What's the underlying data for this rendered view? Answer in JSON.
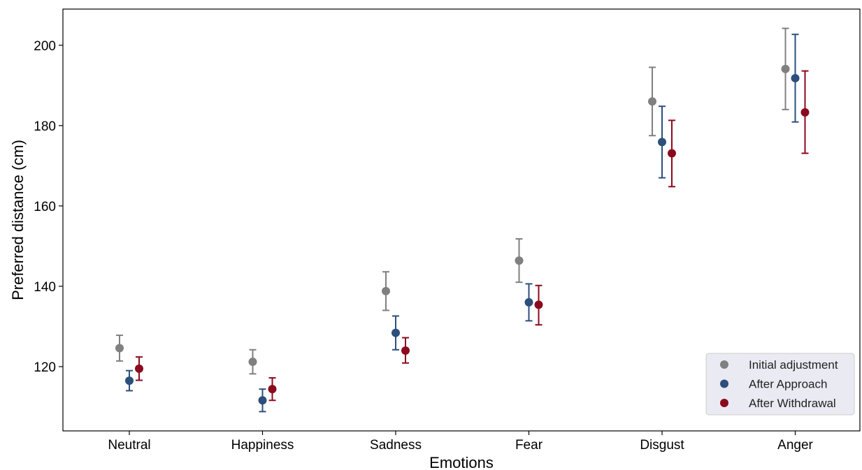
{
  "chart_data": {
    "type": "scatter",
    "xlabel": "Emotions",
    "ylabel": "Preferred distance (cm)",
    "categories": [
      "Neutral",
      "Happiness",
      "Sadness",
      "Fear",
      "Disgust",
      "Anger"
    ],
    "ylim": [
      104,
      209
    ],
    "yticks": [
      120,
      140,
      160,
      180,
      200
    ],
    "grid": false,
    "legend_position": "bottom-right",
    "series": [
      {
        "name": "Initial adjustment",
        "color": "#808080",
        "values": [
          124.6,
          121.2,
          138.8,
          146.4,
          186.0,
          194.1
        ],
        "err_low": [
          121.4,
          118.2,
          134.0,
          141.0,
          177.5,
          184.0
        ],
        "err_high": [
          127.8,
          124.2,
          143.6,
          151.8,
          194.5,
          204.2
        ]
      },
      {
        "name": "After Approach",
        "color": "#2c4f7c",
        "values": [
          116.5,
          111.6,
          128.4,
          136.0,
          175.9,
          191.8
        ],
        "err_low": [
          114.0,
          108.8,
          124.2,
          131.4,
          167.0,
          180.9
        ],
        "err_high": [
          119.0,
          114.4,
          132.6,
          140.6,
          184.8,
          202.7
        ]
      },
      {
        "name": "After Withdrawal",
        "color": "#8b0a1e",
        "values": [
          119.5,
          114.4,
          124.0,
          135.4,
          173.1,
          183.3
        ],
        "err_low": [
          116.6,
          111.6,
          120.9,
          130.4,
          164.8,
          173.1
        ],
        "err_high": [
          122.4,
          117.2,
          127.2,
          140.2,
          181.3,
          193.6
        ]
      }
    ]
  }
}
